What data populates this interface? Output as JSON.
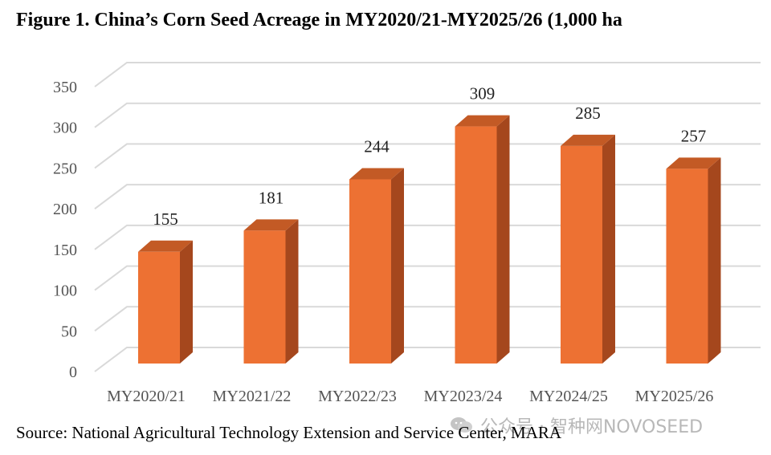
{
  "title": "Figure 1. China’s Corn Seed Acreage in MY2020/21-MY2025/26 (1,000 ha",
  "source": "Source: National Agricultural Technology Extension and Service Center, MARA",
  "watermark": {
    "icon": "wechat-icon",
    "text": "公众号 · 智种网NOVOSEED"
  },
  "colors": {
    "bar_front": "#ED7133",
    "bar_side": "#A5471D",
    "bar_top": "#C35A25",
    "grid": "#d9d9d9"
  },
  "chart_data": {
    "type": "bar",
    "style": "3d-clustered-column",
    "categories": [
      "MY2020/21",
      "MY2021/22",
      "MY2022/23",
      "MY2023/24",
      "MY2024/25",
      "MY2025/26"
    ],
    "values": [
      155,
      181,
      244,
      309,
      285,
      257
    ],
    "yticks": [
      0,
      50,
      100,
      150,
      200,
      250,
      300,
      350
    ],
    "ylim": [
      0,
      350
    ],
    "grid": true,
    "legend": "none",
    "data_labels": true
  }
}
